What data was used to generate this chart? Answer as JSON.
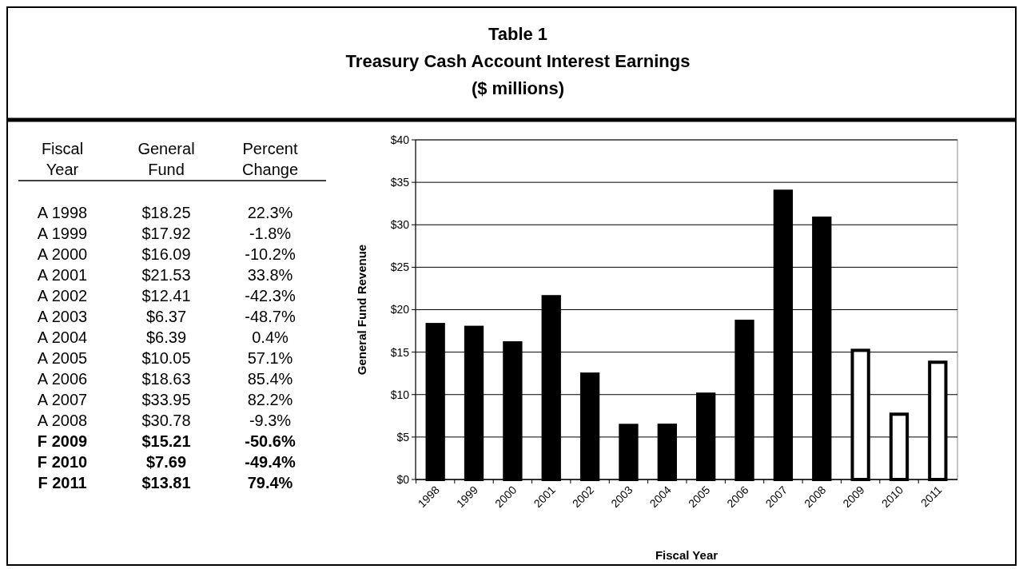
{
  "chart_data": [
    {
      "type": "other",
      "title": "Table 1",
      "subtitle": "Treasury Cash Account Interest Earnings",
      "annotations": [
        "($ millions)"
      ],
      "legend_title": "Fiscal Year",
      "categories": [
        "A 1998",
        "A 1999",
        "A 2000",
        "A 2001",
        "A 2002",
        "A 2003",
        "A 2004",
        "A 2005",
        "A 2006",
        "A 2007",
        "A 2008",
        "F 2009",
        "F 2010",
        "F 2011"
      ],
      "series": [
        {
          "name": "General Fund",
          "values": [
            18.25,
            17.92,
            16.09,
            21.53,
            12.41,
            6.37,
            6.39,
            10.05,
            18.63,
            33.95,
            30.78,
            15.21,
            7.69,
            13.81
          ],
          "value_labels": [
            "$18.25",
            "$17.92",
            "$16.09",
            "$21.53",
            "$12.41",
            "$6.37",
            "$6.39",
            "$10.05",
            "$18.63",
            "$33.95",
            "$30.78",
            "$15.21",
            "$7.69",
            "$13.81"
          ]
        },
        {
          "name": "Percent Change",
          "values": [
            22.3,
            -1.8,
            -10.2,
            33.8,
            -42.3,
            -48.7,
            0.4,
            57.1,
            85.4,
            82.2,
            -9.3,
            -50.6,
            -49.4,
            79.4
          ],
          "value_labels": [
            "22.3%",
            "-1.8%",
            "-10.2%",
            "33.8%",
            "-42.3%",
            "-48.7%",
            "0.4%",
            "57.1%",
            "85.4%",
            "82.2%",
            "-9.3%",
            "-50.6%",
            "-49.4%",
            "79.4%"
          ]
        }
      ]
    },
    {
      "type": "bar",
      "xlabel": "Fiscal Year",
      "ylabel": "General Fund Revenue",
      "categories": [
        "1998",
        "1999",
        "2000",
        "2001",
        "2002",
        "2003",
        "2004",
        "2005",
        "2006",
        "2007",
        "2008",
        "2009",
        "2010",
        "2011"
      ],
      "values": [
        18.25,
        17.92,
        16.09,
        21.53,
        12.41,
        6.37,
        6.39,
        10.05,
        18.63,
        33.95,
        30.78,
        15.21,
        7.69,
        13.81
      ],
      "colors": [
        "#000000",
        "#000000",
        "#000000",
        "#000000",
        "#000000",
        "#000000",
        "#000000",
        "#000000",
        "#000000",
        "#000000",
        "#000000",
        "#ffffff",
        "#ffffff",
        "#ffffff"
      ],
      "ylim": [
        0,
        40
      ],
      "yticks": [
        {
          "value": 0,
          "label": "$0"
        },
        {
          "value": 5,
          "label": "$5"
        },
        {
          "value": 10,
          "label": "$10"
        },
        {
          "value": 15,
          "label": "$15"
        },
        {
          "value": 20,
          "label": "$20"
        },
        {
          "value": 25,
          "label": "$25"
        },
        {
          "value": 30,
          "label": "$30"
        },
        {
          "value": 35,
          "label": "$35"
        },
        {
          "value": 40,
          "label": "$40"
        }
      ],
      "grid": "y"
    }
  ]
}
